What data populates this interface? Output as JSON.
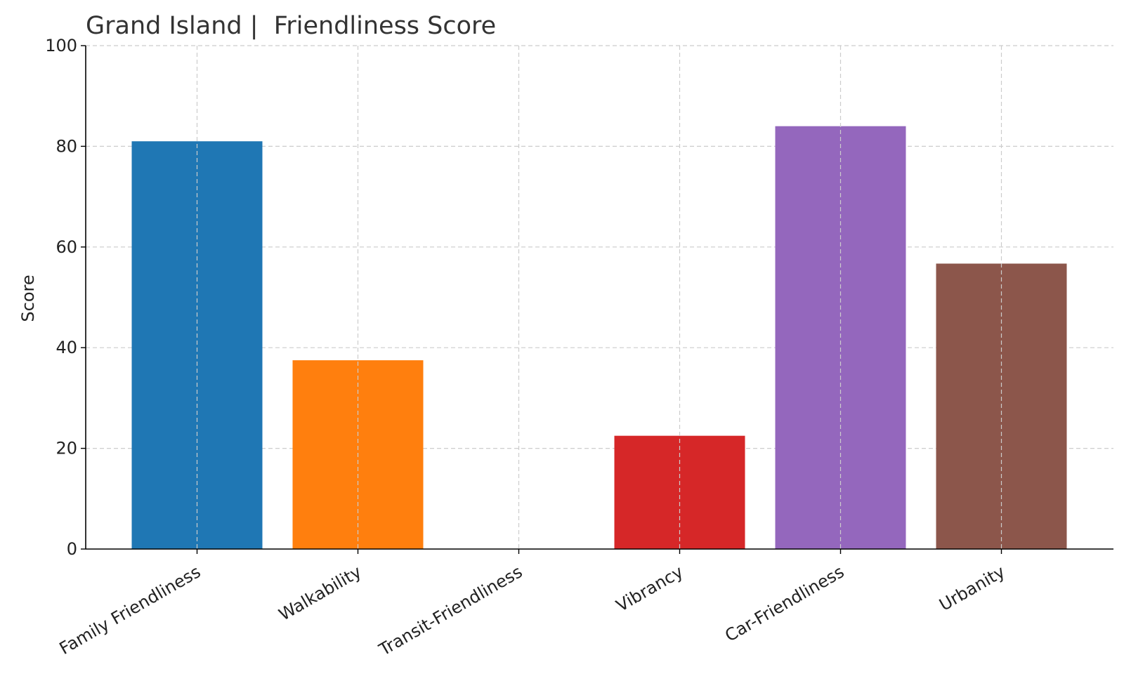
{
  "chart_data": {
    "type": "bar",
    "title": "Grand Island |  Friendliness Score",
    "xlabel": "",
    "ylabel": "Score",
    "ylim": [
      0,
      100
    ],
    "yticks": [
      0,
      20,
      40,
      60,
      80,
      100
    ],
    "grid": true,
    "categories": [
      "Family Friendliness",
      "Walkability",
      "Transit-Friendliness",
      "Vibrancy",
      "Car-Friendliness",
      "Urbanity"
    ],
    "values": [
      81,
      37.5,
      0,
      22.5,
      84,
      56.7
    ],
    "colors": [
      "#1f77b4",
      "#ff7f0e",
      "#2ca02c",
      "#d62728",
      "#9467bd",
      "#8c564b"
    ]
  }
}
